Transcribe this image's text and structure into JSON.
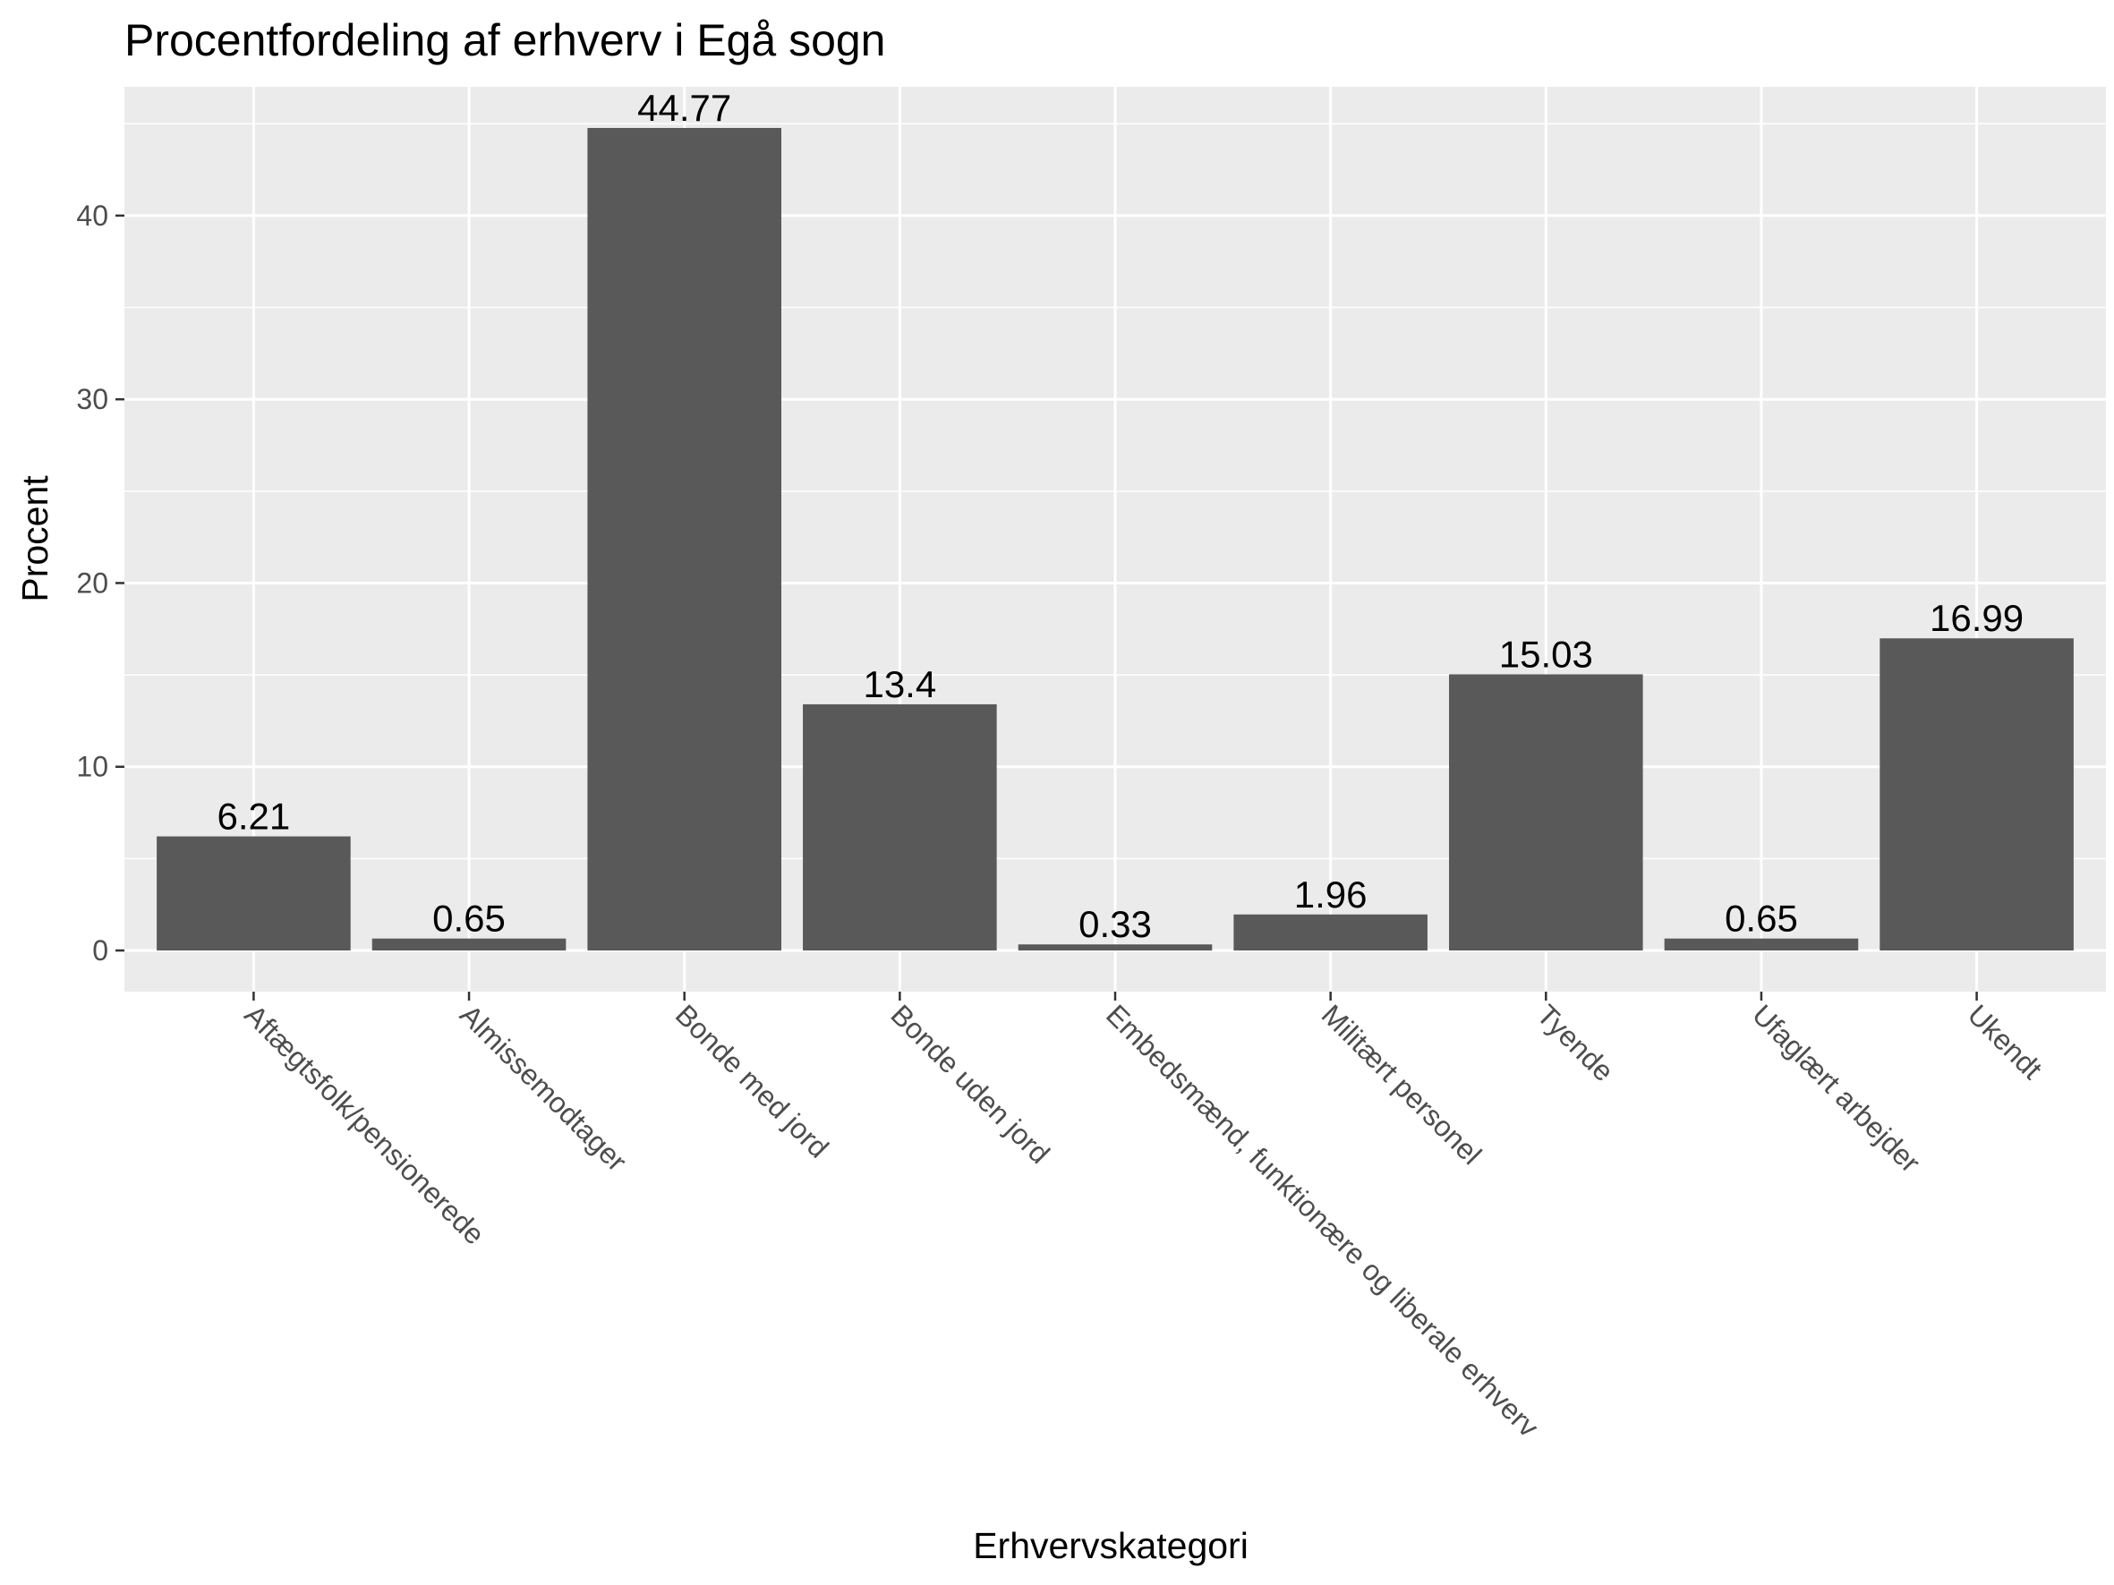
{
  "chart_data": {
    "type": "bar",
    "title": "Procentfordeling af erhverv i Egå sogn",
    "xlabel": "Erhvervskategori",
    "ylabel": "Procent",
    "categories": [
      "Aftægtsfolk/pensionerede",
      "Almissemodtager",
      "Bonde med jord",
      "Bonde uden jord",
      "Embedsmænd, funktionære og liberale erhverv",
      "Militært personel",
      "Tyende",
      "Ufaglært arbejder",
      "Ukendt"
    ],
    "values": [
      6.21,
      0.65,
      44.77,
      13.4,
      0.33,
      1.96,
      15.03,
      0.65,
      16.99
    ],
    "value_labels": [
      "6.21",
      "0.65",
      "44.77",
      "13.4",
      "0.33",
      "1.96",
      "15.03",
      "0.65",
      "16.99"
    ],
    "yticks": [
      0,
      10,
      20,
      30,
      40
    ],
    "ylim": [
      -2.24,
      47.01
    ],
    "grid": true,
    "colors": {
      "panel_background": "#ebebeb",
      "grid_major": "#ffffff",
      "bar_fill": "#595959",
      "tick_color": "#333333"
    }
  }
}
